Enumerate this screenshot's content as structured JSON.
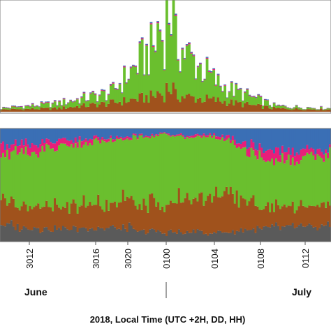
{
  "chart_data": [
    {
      "type": "bar",
      "stacked": true,
      "panel": "top",
      "x": [
        "3012",
        "3016",
        "3020",
        "0100",
        "0104",
        "0108",
        "0112"
      ],
      "series": [
        {
          "color": "#a0521c",
          "values": [
            2,
            3,
            8,
            16,
            10,
            3,
            2
          ]
        },
        {
          "color": "#6abf2e",
          "values": [
            1,
            4,
            9,
            55,
            14,
            2,
            1
          ]
        },
        {
          "color": "#e81e7a",
          "values": [
            0.3,
            0.5,
            0.6,
            0.8,
            0.6,
            0.3,
            0.2
          ]
        },
        {
          "color": "#3a6fb5",
          "values": [
            0.3,
            0.4,
            0.5,
            0.8,
            0.6,
            0.3,
            0.2
          ]
        }
      ],
      "colors": [
        "#a0521c",
        "#6abf2e",
        "#e81e7a",
        "#3a6fb5",
        "#5a5a5a"
      ],
      "grid": false,
      "legend": false
    },
    {
      "type": "bar",
      "stacked": true,
      "panel": "bottom",
      "normalized": true,
      "x": [
        "3012",
        "3016",
        "3020",
        "0100",
        "0104",
        "0108",
        "0112"
      ],
      "series": [
        {
          "color": "#5a5a5a",
          "values": [
            0.14,
            0.12,
            0.12,
            0.08,
            0.08,
            0.12,
            0.14
          ]
        },
        {
          "color": "#a0521c",
          "values": [
            0.22,
            0.2,
            0.22,
            0.26,
            0.34,
            0.16,
            0.2
          ]
        },
        {
          "color": "#6abf2e",
          "values": [
            0.42,
            0.5,
            0.56,
            0.6,
            0.5,
            0.42,
            0.44
          ]
        },
        {
          "color": "#e81e7a",
          "values": [
            0.08,
            0.06,
            0.02,
            0.01,
            0.02,
            0.1,
            0.04
          ]
        },
        {
          "color": "#3a6fb5",
          "values": [
            0.14,
            0.12,
            0.08,
            0.05,
            0.06,
            0.2,
            0.18
          ]
        }
      ],
      "grid": false,
      "legend": false
    }
  ],
  "axis": {
    "tick_labels": [
      "3012",
      "3016",
      "3020",
      "0100",
      "0104",
      "0108",
      "0112"
    ],
    "month_left": "June",
    "month_right": "July",
    "xlabel": "2018, Local Time (UTC +2H, DD, HH)"
  }
}
